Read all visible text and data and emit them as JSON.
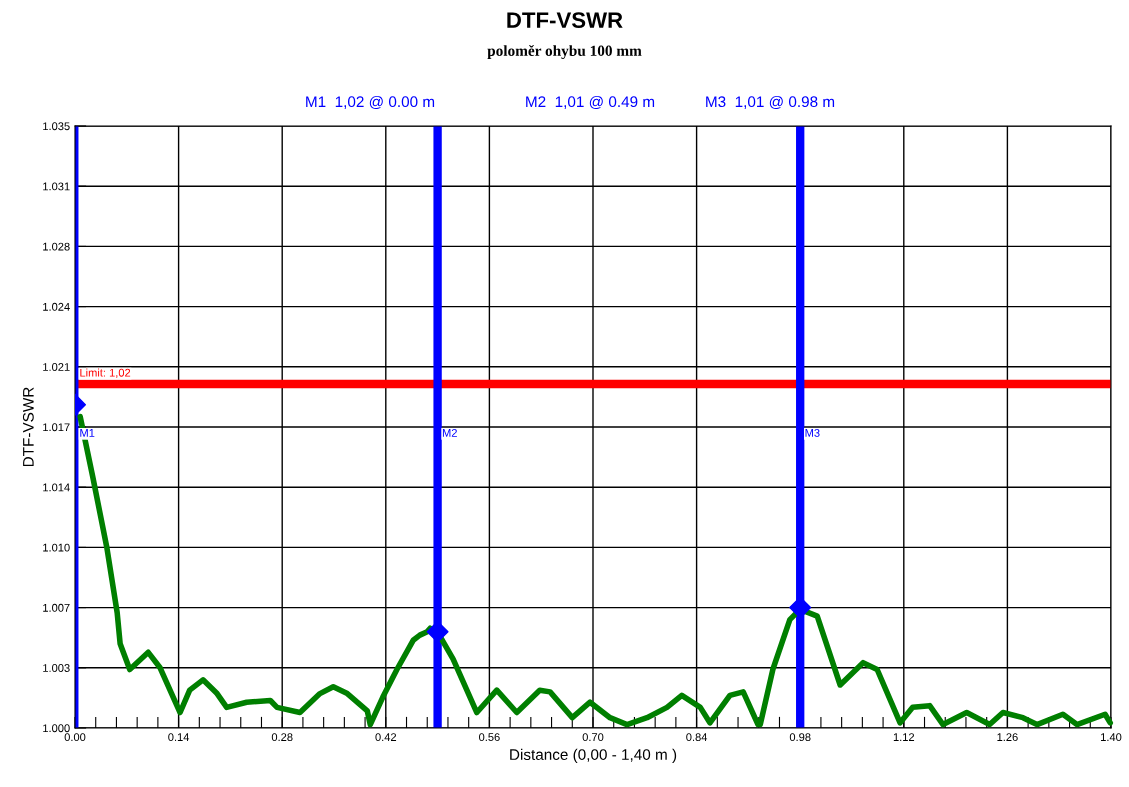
{
  "chart_data": {
    "type": "line",
    "title": "DTF-VSWR",
    "subtitle": "poloměr ohybu 100 mm",
    "xlabel": "Distance (0,00 - 1,40 m )",
    "ylabel": "DTF-VSWR",
    "annotations": [
      "M1  1,02 @ 0.00 m",
      "M2  1,01 @ 0.49 m",
      "M3  1,01 @ 0.98 m"
    ],
    "xlim": [
      0,
      1.4
    ],
    "ylim": [
      1.0,
      1.035
    ],
    "xticks": [
      {
        "value": 0,
        "label": "0.00"
      },
      {
        "value": 0.028,
        "label": null
      },
      {
        "value": 0.056,
        "label": null
      },
      {
        "value": 0.084,
        "label": null
      },
      {
        "value": 0.112,
        "label": null
      },
      {
        "value": 0.14,
        "label": "0.14"
      },
      {
        "value": 0.168,
        "label": null
      },
      {
        "value": 0.196,
        "label": null
      },
      {
        "value": 0.224,
        "label": null
      },
      {
        "value": 0.252,
        "label": null
      },
      {
        "value": 0.28,
        "label": "0.28"
      },
      {
        "value": 0.308,
        "label": null
      },
      {
        "value": 0.336,
        "label": null
      },
      {
        "value": 0.364,
        "label": null
      },
      {
        "value": 0.392,
        "label": null
      },
      {
        "value": 0.42,
        "label": "0.42"
      },
      {
        "value": 0.448,
        "label": null
      },
      {
        "value": 0.476,
        "label": null
      },
      {
        "value": 0.504,
        "label": null
      },
      {
        "value": 0.532,
        "label": null
      },
      {
        "value": 0.56,
        "label": "0.56"
      },
      {
        "value": 0.588,
        "label": null
      },
      {
        "value": 0.616,
        "label": null
      },
      {
        "value": 0.644,
        "label": null
      },
      {
        "value": 0.672,
        "label": null
      },
      {
        "value": 0.7,
        "label": "0.70"
      },
      {
        "value": 0.728,
        "label": null
      },
      {
        "value": 0.756,
        "label": null
      },
      {
        "value": 0.784,
        "label": null
      },
      {
        "value": 0.812,
        "label": null
      },
      {
        "value": 0.84,
        "label": "0.84"
      },
      {
        "value": 0.868,
        "label": null
      },
      {
        "value": 0.896,
        "label": null
      },
      {
        "value": 0.924,
        "label": null
      },
      {
        "value": 0.952,
        "label": null
      },
      {
        "value": 0.98,
        "label": "0.98"
      },
      {
        "value": 1.008,
        "label": null
      },
      {
        "value": 1.036,
        "label": null
      },
      {
        "value": 1.064,
        "label": null
      },
      {
        "value": 1.092,
        "label": null
      },
      {
        "value": 1.12,
        "label": "1.12"
      },
      {
        "value": 1.148,
        "label": null
      },
      {
        "value": 1.176,
        "label": null
      },
      {
        "value": 1.204,
        "label": null
      },
      {
        "value": 1.232,
        "label": null
      },
      {
        "value": 1.26,
        "label": "1.26"
      },
      {
        "value": 1.288,
        "label": null
      },
      {
        "value": 1.316,
        "label": null
      },
      {
        "value": 1.344,
        "label": null
      },
      {
        "value": 1.372,
        "label": null
      },
      {
        "value": 1.4,
        "label": "1.40"
      }
    ],
    "yticks": [
      {
        "value": 1.0,
        "label": "1.000"
      },
      {
        "value": 1.0035,
        "label": "1.003"
      },
      {
        "value": 1.007,
        "label": "1.007"
      },
      {
        "value": 1.0105,
        "label": "1.010"
      },
      {
        "value": 1.014,
        "label": "1.014"
      },
      {
        "value": 1.0175,
        "label": "1.017"
      },
      {
        "value": 1.021,
        "label": "1.021"
      },
      {
        "value": 1.0245,
        "label": "1.024"
      },
      {
        "value": 1.028,
        "label": "1.028"
      },
      {
        "value": 1.0315,
        "label": "1.031"
      },
      {
        "value": 1.035,
        "label": "1.035"
      }
    ],
    "grid": true,
    "ref_lines": [
      {
        "axis": "y",
        "value": 1.02,
        "label": "Limit: 1,02",
        "color": "#ff0000"
      },
      {
        "axis": "x",
        "value": 0.0,
        "label": "M1",
        "color": "#0000ff"
      },
      {
        "axis": "x",
        "value": 0.49,
        "label": "M2",
        "color": "#0000ff"
      },
      {
        "axis": "x",
        "value": 0.98,
        "label": "M3",
        "color": "#0000ff"
      }
    ],
    "series": [
      {
        "color": "#007f00",
        "x": [
          0.007,
          0.024,
          0.043,
          0.057,
          0.061,
          0.074,
          0.099,
          0.115,
          0.142,
          0.155,
          0.173,
          0.192,
          0.205,
          0.232,
          0.264,
          0.273,
          0.304,
          0.331,
          0.349,
          0.368,
          0.395,
          0.399,
          0.416,
          0.435,
          0.457,
          0.466,
          0.476,
          0.48,
          0.491,
          0.511,
          0.543,
          0.57,
          0.597,
          0.628,
          0.642,
          0.672,
          0.696,
          0.723,
          0.746,
          0.773,
          0.8,
          0.82,
          0.845,
          0.858,
          0.885,
          0.903,
          0.923,
          0.926,
          0.943,
          0.966,
          0.98,
          1.003,
          1.034,
          1.065,
          1.084,
          1.115,
          1.132,
          1.155,
          1.173,
          1.205,
          1.236,
          1.254,
          1.281,
          1.3,
          1.335,
          1.354,
          1.392,
          1.399
        ],
        "values": [
          1.0181,
          1.0146,
          1.0105,
          1.0067,
          1.0049,
          1.0034,
          1.0044,
          1.0035,
          1.0009,
          1.0022,
          1.0028,
          1.002,
          1.0012,
          1.0015,
          1.0016,
          1.0012,
          1.0009,
          1.002,
          1.0024,
          1.002,
          1.001,
          1.0002,
          1.0018,
          1.0034,
          1.0051,
          1.0054,
          1.0056,
          1.0058,
          1.0055,
          1.004,
          1.0009,
          1.0022,
          1.0009,
          1.0022,
          1.0021,
          1.0006,
          1.0015,
          1.0006,
          1.0002,
          1.0006,
          1.0012,
          1.0019,
          1.0012,
          1.0003,
          1.0019,
          1.0021,
          1.0002,
          1.0002,
          1.0034,
          1.0063,
          1.0069,
          1.0065,
          1.0025,
          1.0038,
          1.0034,
          1.0003,
          1.0012,
          1.0013,
          1.0002,
          1.0009,
          1.0002,
          1.0009,
          1.0006,
          1.0002,
          1.0008,
          1.0002,
          1.0008,
          1.0003
        ]
      },
      {
        "type": "scatter",
        "marker": "diamond",
        "color": "#0000ff",
        "x": [
          0.0,
          0.49,
          0.98
        ],
        "values": [
          1.0188,
          1.0056,
          1.007
        ]
      }
    ]
  }
}
